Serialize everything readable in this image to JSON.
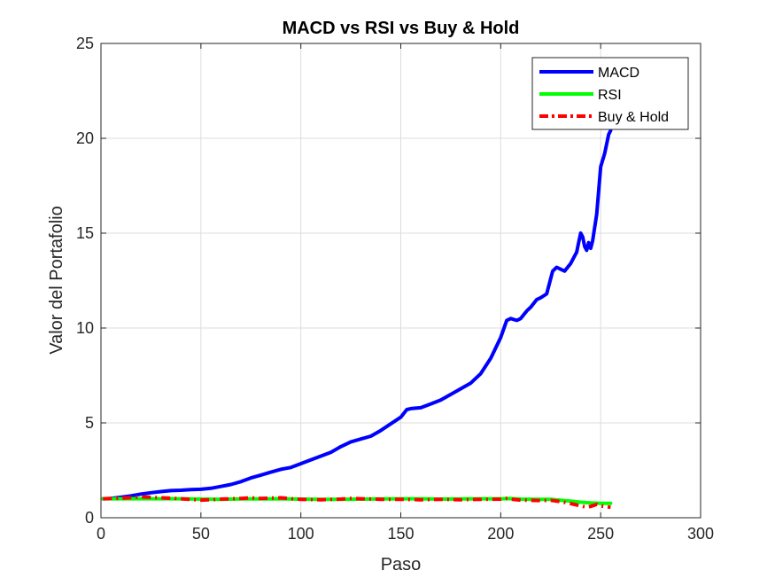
{
  "chart_data": {
    "type": "line",
    "title": "MACD vs RSI vs Buy & Hold",
    "xlabel": "Paso",
    "ylabel": "Valor del Portafolio",
    "xlim": [
      0,
      300
    ],
    "ylim": [
      0,
      25
    ],
    "xticks": [
      "0",
      "50",
      "100",
      "150",
      "200",
      "250",
      "300"
    ],
    "yticks": [
      "0",
      "5",
      "10",
      "15",
      "20",
      "25"
    ],
    "grid": true,
    "legend_position": "top-right",
    "series": [
      {
        "name": "MACD",
        "color": "#0000ff",
        "style": "solid",
        "x": [
          1,
          5,
          10,
          15,
          20,
          25,
          30,
          35,
          40,
          45,
          50,
          55,
          60,
          65,
          70,
          75,
          80,
          85,
          90,
          95,
          100,
          105,
          110,
          115,
          120,
          125,
          130,
          135,
          140,
          145,
          150,
          153,
          155,
          160,
          165,
          170,
          175,
          180,
          185,
          190,
          195,
          200,
          203,
          205,
          208,
          210,
          213,
          215,
          218,
          220,
          223,
          226,
          228,
          230,
          232,
          235,
          237,
          238,
          239,
          240,
          241,
          242,
          243,
          244,
          245,
          246,
          248,
          250,
          252,
          254,
          255
        ],
        "y": [
          1.0,
          1.02,
          1.08,
          1.15,
          1.25,
          1.32,
          1.38,
          1.43,
          1.45,
          1.48,
          1.5,
          1.55,
          1.65,
          1.75,
          1.9,
          2.1,
          2.25,
          2.4,
          2.55,
          2.65,
          2.85,
          3.05,
          3.25,
          3.45,
          3.75,
          4.0,
          4.15,
          4.3,
          4.6,
          4.95,
          5.3,
          5.7,
          5.75,
          5.8,
          6.0,
          6.2,
          6.5,
          6.8,
          7.1,
          7.6,
          8.4,
          9.5,
          10.4,
          10.5,
          10.4,
          10.5,
          10.9,
          11.1,
          11.5,
          11.6,
          11.8,
          13.0,
          13.2,
          13.1,
          13.0,
          13.4,
          13.8,
          14.0,
          14.5,
          15.0,
          14.8,
          14.3,
          14.1,
          14.5,
          14.2,
          14.6,
          16.0,
          18.5,
          19.2,
          20.2,
          20.4
        ]
      },
      {
        "name": "RSI",
        "color": "#00ff00",
        "style": "solid",
        "x": [
          1,
          10,
          20,
          30,
          40,
          50,
          60,
          70,
          80,
          90,
          100,
          110,
          120,
          130,
          140,
          150,
          160,
          170,
          180,
          190,
          200,
          205,
          210,
          220,
          225,
          230,
          235,
          240,
          245,
          250,
          255
        ],
        "y": [
          1.0,
          1.0,
          1.0,
          1.0,
          1.0,
          0.98,
          0.97,
          0.99,
          0.99,
          1.0,
          0.98,
          0.97,
          0.97,
          0.98,
          0.99,
          1.0,
          1.0,
          0.98,
          0.99,
          1.0,
          1.0,
          1.01,
          0.98,
          0.97,
          0.97,
          0.92,
          0.88,
          0.82,
          0.78,
          0.76,
          0.76
        ]
      },
      {
        "name": "Buy & Hold",
        "color": "#ff0000",
        "style": "dashdot",
        "x": [
          1,
          10,
          20,
          30,
          40,
          50,
          55,
          60,
          70,
          75,
          80,
          90,
          95,
          100,
          110,
          120,
          125,
          130,
          140,
          150,
          160,
          170,
          180,
          190,
          200,
          203,
          205,
          210,
          220,
          225,
          230,
          235,
          240,
          243,
          245,
          248,
          250,
          255
        ],
        "y": [
          1.0,
          1.03,
          1.1,
          1.05,
          1.0,
          0.93,
          0.95,
          0.98,
          1.02,
          1.05,
          1.02,
          1.05,
          1.0,
          0.97,
          0.95,
          0.98,
          1.02,
          1.0,
          0.97,
          0.97,
          0.95,
          0.97,
          0.95,
          0.97,
          0.98,
          1.02,
          0.98,
          0.93,
          0.9,
          0.92,
          0.85,
          0.75,
          0.62,
          0.55,
          0.6,
          0.7,
          0.62,
          0.55
        ]
      }
    ]
  }
}
